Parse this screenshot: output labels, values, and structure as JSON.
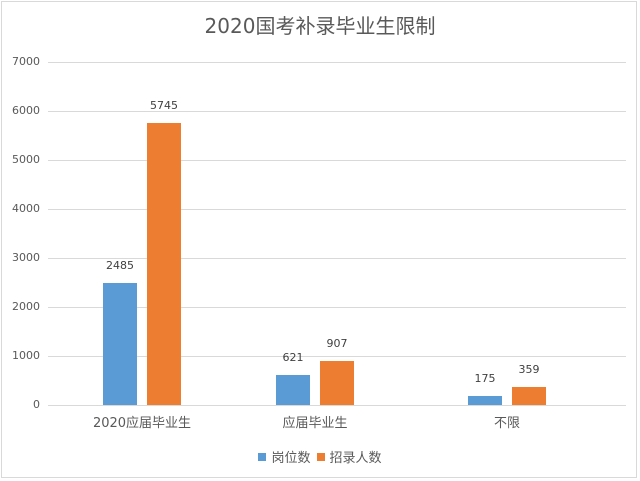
{
  "chart_data": {
    "type": "bar",
    "title": "2020国考补录毕业生限制",
    "categories": [
      "2020应届毕业生",
      "应届毕业生",
      "不限"
    ],
    "series": [
      {
        "name": "岗位数",
        "color": "#5b9bd5",
        "values": [
          2485,
          621,
          175
        ]
      },
      {
        "name": "招录人数",
        "color": "#ed7d31",
        "values": [
          5745,
          907,
          359
        ]
      }
    ],
    "xlabel": "",
    "ylabel": "",
    "ylim": [
      0,
      7000
    ],
    "yticks": [
      0,
      1000,
      2000,
      3000,
      4000,
      5000,
      6000,
      7000
    ],
    "grid": true,
    "legend_position": "bottom",
    "data_labels": true
  },
  "labels": {
    "title": "2020国考补录毕业生限制",
    "yticks": [
      "0",
      "1000",
      "2000",
      "3000",
      "4000",
      "5000",
      "6000",
      "7000"
    ],
    "categories": [
      "2020应届毕业生",
      "应届毕业生",
      "不限"
    ],
    "legend": [
      "岗位数",
      "招录人数"
    ],
    "values_s0": [
      "2485",
      "621",
      "175"
    ],
    "values_s1": [
      "5745",
      "907",
      "359"
    ]
  }
}
